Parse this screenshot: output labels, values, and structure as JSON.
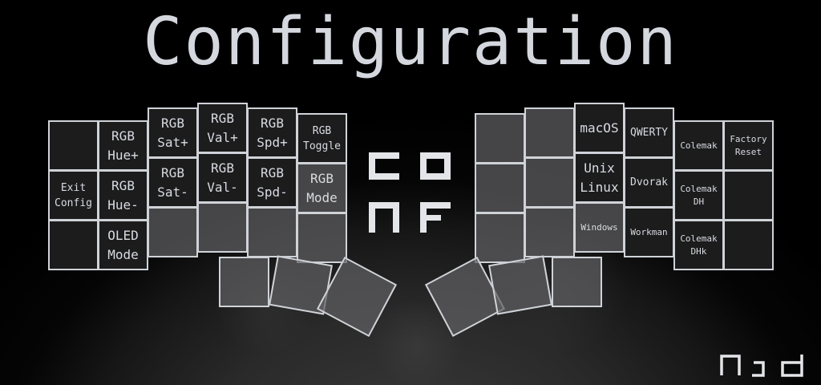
{
  "title": "Configuration",
  "center_logo": "CONF",
  "brand_logo": "Njd",
  "left_keys": {
    "exit_config": "Exit\nConfig",
    "rgb_hue_up": "RGB\nHue+",
    "rgb_hue_down": "RGB\nHue-",
    "oled_mode": "OLED\nMode",
    "rgb_sat_up": "RGB\nSat+",
    "rgb_sat_down": "RGB\nSat-",
    "rgb_val_up": "RGB\nVal+",
    "rgb_val_down": "RGB\nVal-",
    "rgb_spd_up": "RGB\nSpd+",
    "rgb_spd_down": "RGB\nSpd-",
    "rgb_toggle": "RGB\nToggle",
    "rgb_mode": "RGB\nMode"
  },
  "right_keys": {
    "macos": "macOS",
    "unix_linux": "Unix\nLinux",
    "windows": "Windows",
    "qwerty": "QWERTY",
    "dvorak": "Dvorak",
    "workman": "Workman",
    "colemak": "Colemak",
    "colemak_dh": "Colemak\nDH",
    "colemak_dhk": "Colemak\nDHk",
    "factory_reset": "Factory\nReset"
  }
}
